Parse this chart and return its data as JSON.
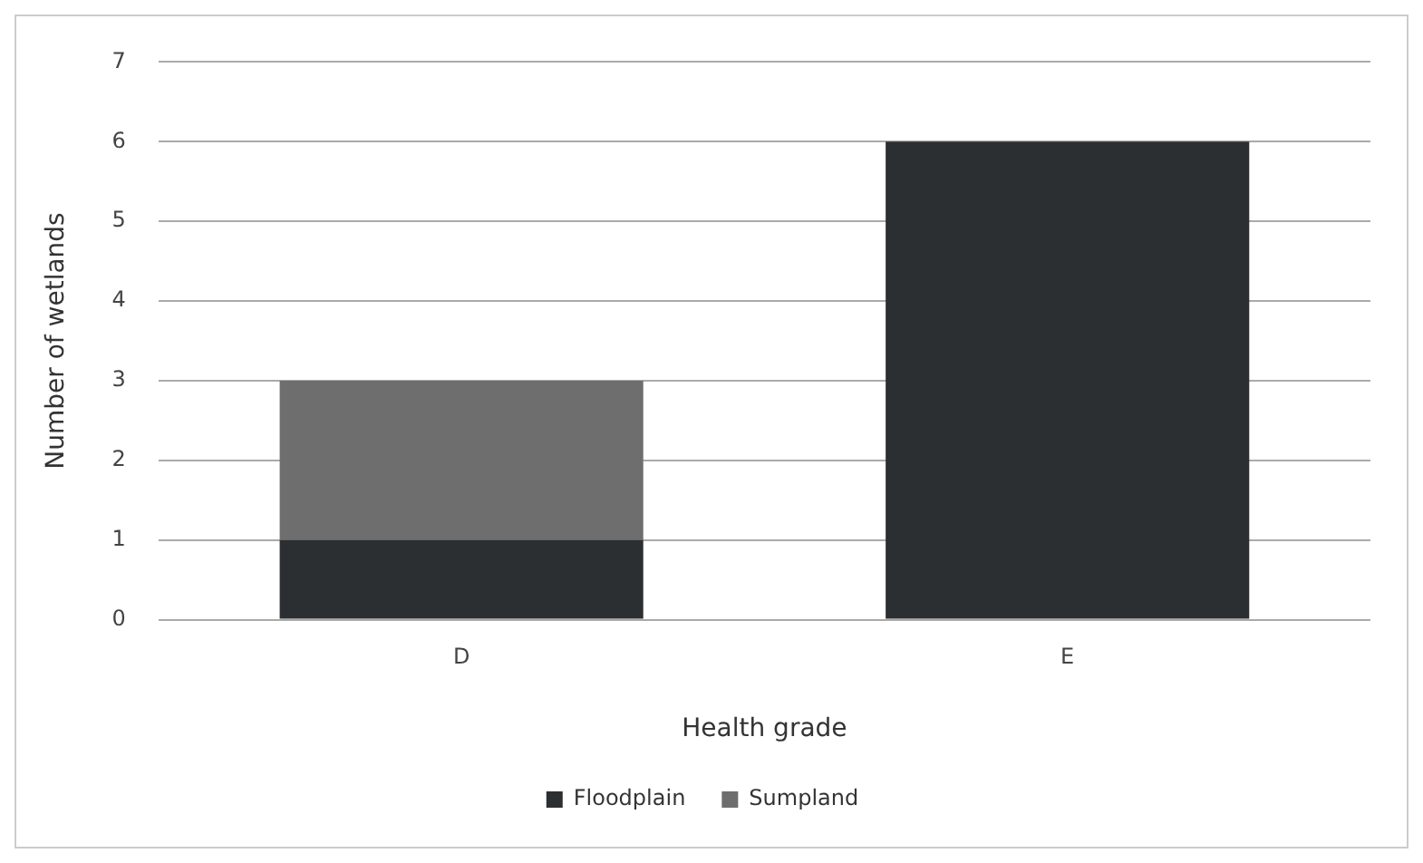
{
  "chart_data": {
    "type": "bar",
    "stacked": true,
    "xlabel": "Health grade",
    "ylabel": "Number of wetlands",
    "categories": [
      "D",
      "E"
    ],
    "series": [
      {
        "name": "Floodplain",
        "color": "#2b2f31",
        "values": [
          1,
          6
        ]
      },
      {
        "name": "Sumpland",
        "color": "#6e6e6e",
        "values": [
          2,
          0
        ]
      }
    ],
    "ylim": [
      0,
      7
    ],
    "yticks": [
      0,
      1,
      2,
      3,
      4,
      5,
      6,
      7
    ],
    "grid": "y",
    "legend": "bottom"
  }
}
